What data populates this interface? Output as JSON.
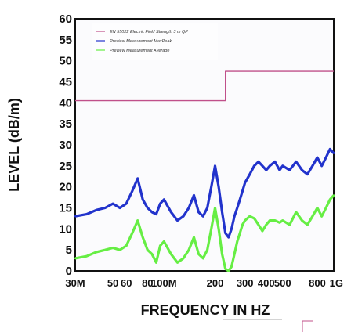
{
  "chart_data": {
    "type": "line",
    "title": "",
    "xlabel": "FREQUENCY IN HZ",
    "ylabel": "LEVEL (dB/m)",
    "x_scale": "log",
    "xlim": [
      30,
      1000
    ],
    "ylim": [
      0,
      60
    ],
    "y_ticks": [
      0,
      5,
      10,
      15,
      20,
      25,
      30,
      35,
      40,
      45,
      50,
      55,
      60
    ],
    "x_ticks": [
      {
        "value": 30,
        "label": "30M"
      },
      {
        "value": 50,
        "label": "50"
      },
      {
        "value": 60,
        "label": "60"
      },
      {
        "value": 80,
        "label": "80"
      },
      {
        "value": 100,
        "label": "100M"
      },
      {
        "value": 200,
        "label": "200"
      },
      {
        "value": 300,
        "label": "300"
      },
      {
        "value": 400,
        "label": "400"
      },
      {
        "value": 500,
        "label": "500"
      },
      {
        "value": 800,
        "label": "800"
      },
      {
        "value": 1000,
        "label": "1G"
      }
    ],
    "grid": false,
    "legend_position": "top-left",
    "colors": {
      "limit": "#c0508a",
      "maxpeak": "#2233cc",
      "average": "#66ee44"
    },
    "series": [
      {
        "name": "EN 55022 Electric Field Strength 3 m QP",
        "x": [
          30,
          230,
          230,
          1000
        ],
        "values": [
          40.5,
          40.5,
          47.5,
          47.5
        ]
      },
      {
        "name": "Preview Measurement MaxPeak",
        "x": [
          30,
          35,
          40,
          45,
          50,
          55,
          60,
          65,
          70,
          75,
          80,
          85,
          90,
          95,
          100,
          110,
          120,
          130,
          140,
          150,
          160,
          170,
          180,
          190,
          200,
          210,
          220,
          230,
          240,
          250,
          260,
          270,
          280,
          290,
          300,
          320,
          340,
          360,
          380,
          400,
          420,
          450,
          480,
          500,
          550,
          600,
          650,
          700,
          750,
          800,
          850,
          900,
          950,
          1000
        ],
        "values": [
          13,
          13.5,
          14.5,
          15,
          16,
          15,
          16,
          19,
          22,
          17,
          15,
          14,
          13.5,
          16,
          17,
          14,
          12,
          13,
          15,
          18,
          14,
          13,
          15,
          20,
          25,
          20,
          14,
          9,
          8,
          10,
          13,
          15,
          17,
          19,
          21,
          23,
          25,
          26,
          25,
          24,
          25,
          26,
          24,
          25,
          24,
          26,
          24,
          23,
          25,
          27,
          25,
          27,
          29,
          28
        ]
      },
      {
        "name": "Preview Measurement Average",
        "x": [
          30,
          35,
          40,
          45,
          50,
          55,
          60,
          65,
          70,
          75,
          80,
          85,
          90,
          95,
          100,
          110,
          120,
          130,
          140,
          150,
          160,
          170,
          180,
          190,
          200,
          210,
          220,
          230,
          240,
          250,
          260,
          270,
          280,
          290,
          300,
          320,
          340,
          360,
          380,
          400,
          420,
          450,
          480,
          500,
          550,
          600,
          650,
          700,
          750,
          800,
          850,
          900,
          950,
          1000
        ],
        "values": [
          3,
          3.5,
          4.5,
          5,
          5.5,
          5,
          6,
          9,
          12,
          8,
          5,
          4,
          2,
          6,
          7,
          4,
          2,
          3,
          5,
          8,
          4,
          3,
          5,
          10,
          15,
          10,
          4,
          0.5,
          0,
          1,
          4,
          7,
          9,
          11,
          12,
          13,
          12.5,
          11,
          9.5,
          11,
          12,
          12,
          11.5,
          12,
          11,
          14,
          12,
          11,
          13,
          15,
          13,
          15,
          17,
          18
        ]
      }
    ]
  }
}
